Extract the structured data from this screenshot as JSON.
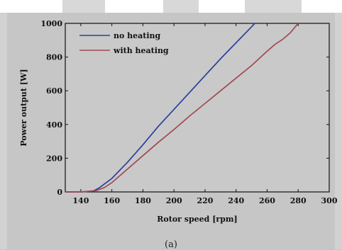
{
  "figure": {
    "caption": "(a)"
  },
  "chart_data": {
    "type": "line",
    "xlabel": "Rotor speed [rpm]",
    "ylabel": "Power output [W]",
    "xlim": [
      130,
      300
    ],
    "ylim": [
      0,
      1000
    ],
    "xticks": [
      140,
      160,
      180,
      200,
      220,
      240,
      260,
      280,
      300
    ],
    "yticks": [
      0,
      200,
      400,
      600,
      800,
      1000
    ],
    "grid": false,
    "legend_position": "top-left",
    "series": [
      {
        "name": "no heating",
        "color": "#2b3f9c",
        "x": [
          130,
          140,
          148,
          152,
          160,
          170,
          180,
          190,
          200,
          210,
          220,
          230,
          240,
          250,
          252
        ],
        "y": [
          0,
          0,
          5,
          25,
          80,
          175,
          280,
          390,
          490,
          590,
          690,
          790,
          885,
          980,
          1000
        ]
      },
      {
        "name": "with heating",
        "color": "#a04a52",
        "x": [
          130,
          140,
          150,
          155,
          160,
          170,
          180,
          190,
          200,
          210,
          220,
          230,
          240,
          250,
          260,
          265,
          270,
          275,
          280
        ],
        "y": [
          0,
          0,
          8,
          25,
          55,
          135,
          215,
          295,
          370,
          450,
          525,
          600,
          675,
          750,
          835,
          875,
          905,
          945,
          1000
        ]
      }
    ]
  }
}
